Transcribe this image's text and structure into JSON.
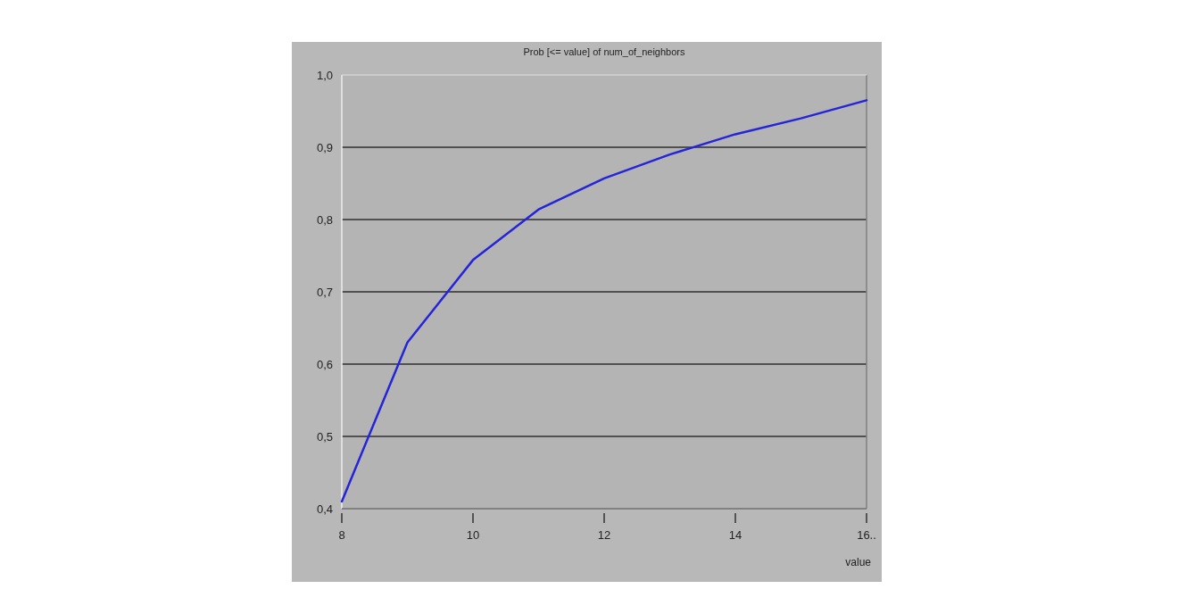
{
  "chart_data": {
    "type": "line",
    "title": "Prob [<= value] of num_of_neighbors",
    "xlabel": "value",
    "x": [
      8,
      9,
      10,
      11,
      12,
      13,
      14,
      15,
      16
    ],
    "series": [
      {
        "color": "#2424d8",
        "values": [
          0.41,
          0.63,
          0.744,
          0.814,
          0.857,
          0.89,
          0.918,
          0.94,
          0.965
        ]
      }
    ],
    "xlim": [
      8,
      16
    ],
    "xticks": [
      8,
      10,
      12,
      14,
      {
        "value": 16,
        "label": "16.."
      }
    ],
    "ylim": [
      0.4,
      1.0
    ],
    "yticks": [
      {
        "value": 0.4,
        "label": "0,4"
      },
      {
        "value": 0.5,
        "label": "0,5"
      },
      {
        "value": 0.6,
        "label": "0,6"
      },
      {
        "value": 0.7,
        "label": "0,7"
      },
      {
        "value": 0.8,
        "label": "0,8"
      },
      {
        "value": 0.9,
        "label": "0,9"
      },
      {
        "value": 1.0,
        "label": "1,0"
      }
    ],
    "grid": "y",
    "marker": "none",
    "line_style": "solid"
  }
}
